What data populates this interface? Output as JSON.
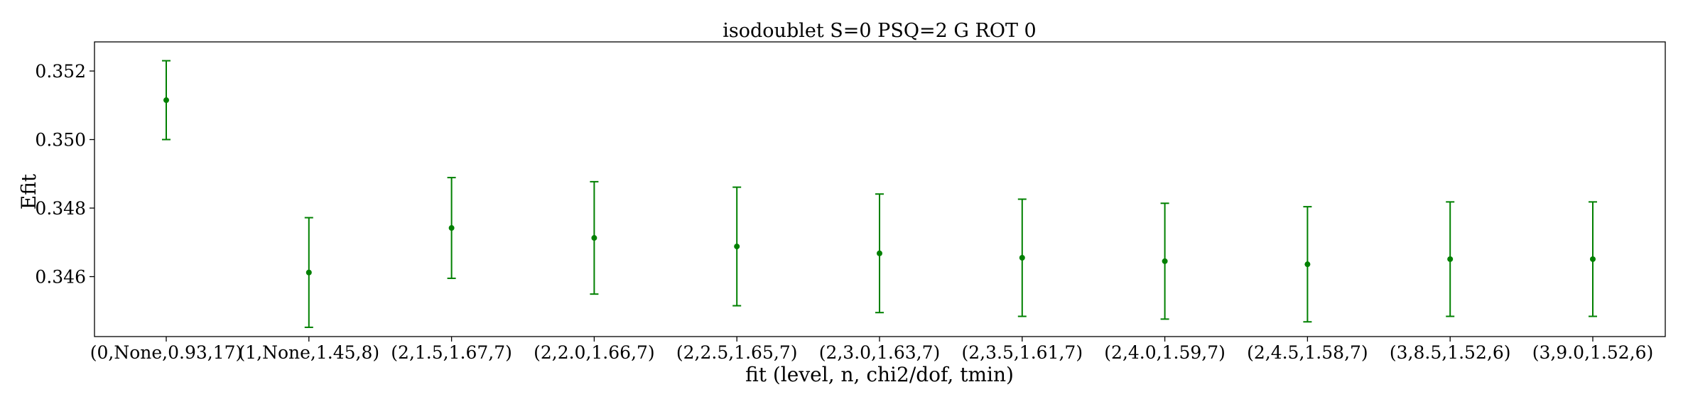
{
  "chart_data": {
    "type": "scatter",
    "title": "isodoublet S=0 PSQ=2 G ROT 0",
    "xlabel": "fit (level, n, chi2/dof, tmin)",
    "ylabel": "Efit",
    "categories": [
      "(0,None,0.93,17)",
      "(1,None,1.45,8)",
      "(2,1.5,1.67,7)",
      "(2,2.0,1.66,7)",
      "(2,2.5,1.65,7)",
      "(2,3.0,1.63,7)",
      "(2,3.5,1.61,7)",
      "(2,4.0,1.59,7)",
      "(2,4.5,1.58,7)",
      "(3,8.5,1.52,6)",
      "(3,9.0,1.52,6)"
    ],
    "values": [
      0.35115,
      0.34612,
      0.34742,
      0.34713,
      0.34688,
      0.34668,
      0.34655,
      0.34645,
      0.34636,
      0.34651,
      0.34651
    ],
    "errors": [
      0.00115,
      0.0016,
      0.00147,
      0.00164,
      0.00173,
      0.00173,
      0.00171,
      0.00169,
      0.00168,
      0.00167,
      0.00167
    ],
    "yticks": [
      0.346,
      0.348,
      0.35,
      0.352
    ],
    "ytick_labels": [
      "0.346",
      "0.348",
      "0.350",
      "0.352"
    ],
    "ylim": [
      0.34425,
      0.35285
    ],
    "grid": false,
    "color": "#008000"
  }
}
